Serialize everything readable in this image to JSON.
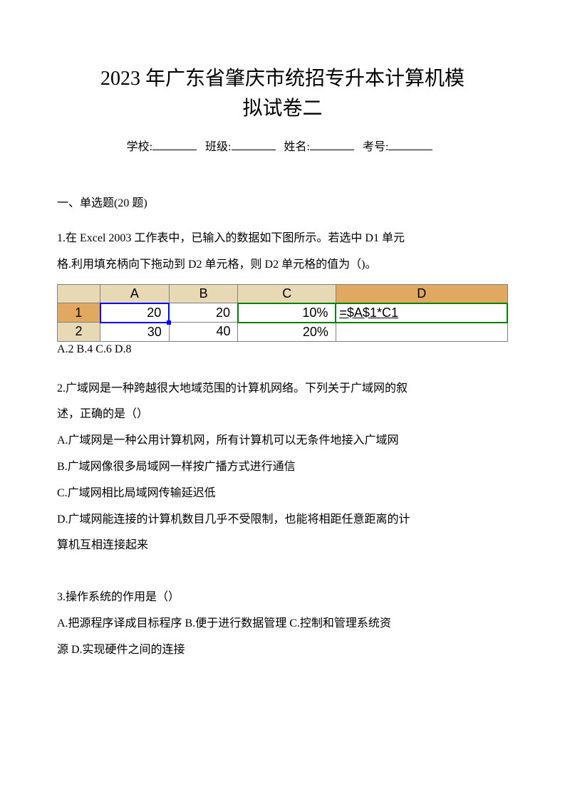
{
  "title": {
    "line1": "2023 年广东省肇庆市统招专升本计算机模",
    "line2": "拟试卷二"
  },
  "info": {
    "school_label": "学校:",
    "class_label": "班级:",
    "name_label": "姓名:",
    "exam_no_label": "考号:"
  },
  "section": {
    "title": "一、单选题(20 题)"
  },
  "excel": {
    "type": "table",
    "headers": {
      "corner": "",
      "col_a": "A",
      "col_b": "B",
      "col_c": "C",
      "col_d": "D"
    },
    "row_headers": {
      "r1": "1",
      "r2": "2"
    },
    "cells": {
      "a1": "20",
      "b1": "20",
      "c1": "10%",
      "d1": "=$A$1*C1",
      "a2": "30",
      "b2": "40",
      "c2": "20%",
      "d2": ""
    },
    "colors": {
      "header_bg": "#e8d9b5",
      "selected_header_bg": "#e0a860",
      "selection_border": "#0000ff",
      "formula_border": "#008000",
      "grid": "#808080"
    }
  },
  "q1": {
    "text_l1": "1.在 Excel 2003 工作表中，已输入的数据如下图所示。若选中 D1 单元",
    "text_l2": "格.利用填充柄向下拖动到 D2 单元格，则 D2 单元格的值为（)。",
    "options": "A.2 B.4 C.6 D.8"
  },
  "q2": {
    "text_l1": "2.广域网是一种跨越很大地域范围的计算机网络。下列关于广域网的叙",
    "text_l2": "述，正确的是（）",
    "opt_a": "A.广域网是一种公用计算机网，所有计算机可以无条件地接入广域网",
    "opt_b": "B.广域网像很多局域网一样按广播方式进行通信",
    "opt_c": "C.广域网相比局域网传输延迟低",
    "opt_d1": "D.广域网能连接的计算机数目几乎不受限制，也能将相距任意距离的计",
    "opt_d2": "算机互相连接起来"
  },
  "q3": {
    "text": "3.操作系统的作用是（）",
    "opt_l1": "A.把源程序译成目标程序 B.便于进行数据管理 C.控制和管理系统资",
    "opt_l2": "源 D.实现硬件之间的连接"
  }
}
